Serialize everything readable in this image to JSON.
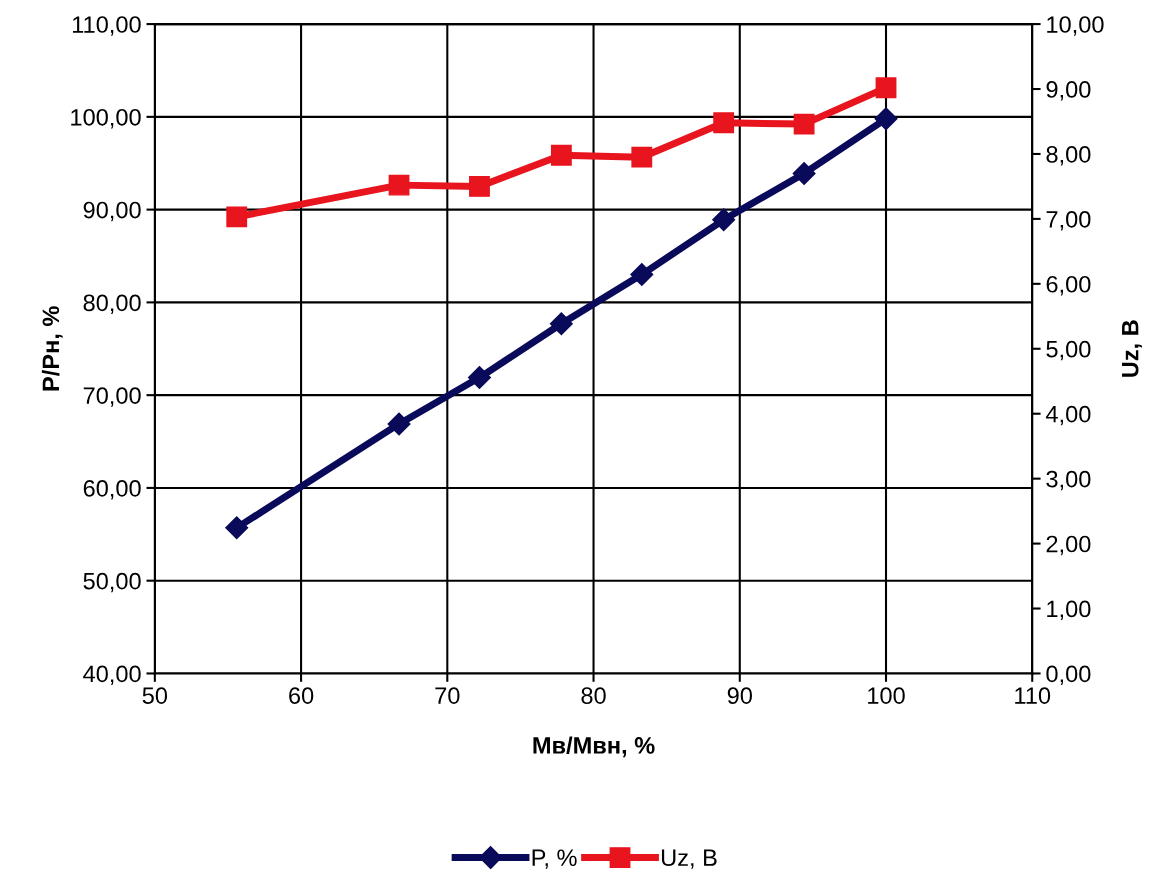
{
  "chart_data": {
    "type": "line",
    "xlabel": "Мв/Мвн, %",
    "ylabel": "P/Pн, %",
    "y2label": "Uz, В",
    "x": [
      55.6,
      66.7,
      72.2,
      77.8,
      83.3,
      88.9,
      94.4,
      100
    ],
    "series": [
      {
        "name": "P, %",
        "color": "#0a0a5a",
        "marker": "diamond",
        "values": [
          55.7,
          66.9,
          71.9,
          77.7,
          83.0,
          88.9,
          93.9,
          99.8
        ]
      },
      {
        "name": "Uz, В",
        "color": "#e8141e",
        "marker": "square",
        "axis": "y2",
        "values": [
          7.03,
          7.52,
          7.5,
          7.98,
          7.95,
          8.48,
          8.46,
          9.02
        ]
      }
    ],
    "xlim": [
      50,
      110
    ],
    "xticks": [
      50,
      60,
      70,
      80,
      90,
      100,
      110
    ],
    "ylim": [
      40,
      110
    ],
    "yticks": [
      {
        "value": 40,
        "label": "40,00"
      },
      {
        "value": 50,
        "label": "50,00"
      },
      {
        "value": 60,
        "label": "60,00"
      },
      {
        "value": 70,
        "label": "70,00"
      },
      {
        "value": 80,
        "label": "80,00"
      },
      {
        "value": 90,
        "label": "90,00"
      },
      {
        "value": 100,
        "label": "100,00"
      },
      {
        "value": 110,
        "label": "110,00"
      }
    ],
    "y2lim": [
      0,
      10
    ],
    "y2ticks": [
      {
        "value": 0,
        "label": "0,00"
      },
      {
        "value": 1,
        "label": "1,00"
      },
      {
        "value": 2,
        "label": "2,00"
      },
      {
        "value": 3,
        "label": "3,00"
      },
      {
        "value": 4,
        "label": "4,00"
      },
      {
        "value": 5,
        "label": "5,00"
      },
      {
        "value": 6,
        "label": "6,00"
      },
      {
        "value": 7,
        "label": "7,00"
      },
      {
        "value": 8,
        "label": "8,00"
      },
      {
        "value": 9,
        "label": "9,00"
      },
      {
        "value": 10,
        "label": "10,00"
      }
    ],
    "grid": true,
    "legend": "bottom",
    "line_style": "solid"
  }
}
